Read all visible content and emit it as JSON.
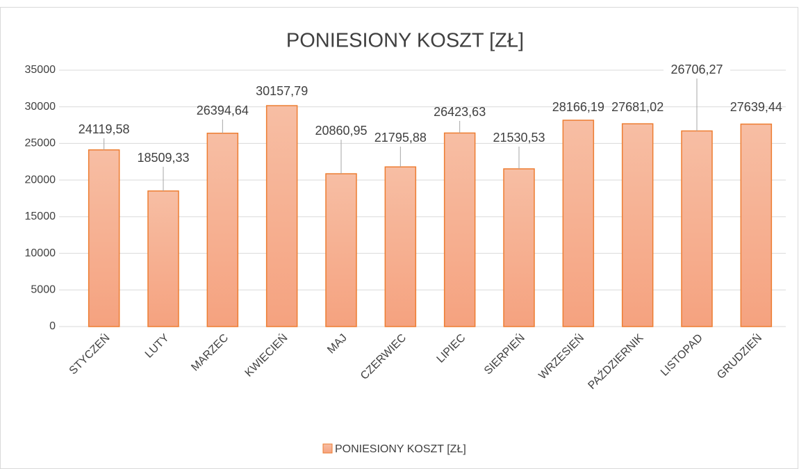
{
  "chart_data": {
    "type": "bar",
    "title": "PONIESIONY KOSZT [ZŁ]",
    "categories": [
      "STYCZEŃ",
      "LUTY",
      "MARZEC",
      "KWIECIEŃ",
      "MAJ",
      "CZERWIEC",
      "LIPIEC",
      "SIERPIEŃ",
      "WRZESIEŃ",
      "PAŹDZIERNIK",
      "LISTOPAD",
      "GRUDZIEŃ"
    ],
    "series": [
      {
        "name": "PONIESIONY KOSZT [ZŁ]",
        "color": "#ed7d31",
        "values": [
          24119.58,
          18509.33,
          26394.64,
          30157.79,
          20860.95,
          21795.88,
          26423.63,
          21530.53,
          28166.19,
          27681.02,
          26706.27,
          27639.44
        ],
        "value_labels": [
          "24119,58",
          "18509,33",
          "26394,64",
          "30157,79",
          "20860,95",
          "21795,88",
          "26423,63",
          "21530,53",
          "28166,19",
          "27681,02",
          "26706,27",
          "27639,44"
        ]
      }
    ],
    "ylim": [
      0,
      35000
    ],
    "yticks": [
      0,
      5000,
      10000,
      15000,
      20000,
      25000,
      30000,
      35000
    ],
    "grid": true,
    "legend": "bottom"
  }
}
